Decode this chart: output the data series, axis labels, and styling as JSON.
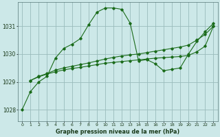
{
  "title": "Graphe pression niveau de la mer (hPa)",
  "bg_color": "#cce8e8",
  "grid_color": "#99bbbb",
  "line_color": "#1a6b1a",
  "xlim": [
    -0.5,
    23.5
  ],
  "ylim": [
    1027.6,
    1031.85
  ],
  "yticks": [
    1028,
    1029,
    1030,
    1031
  ],
  "xticks": [
    0,
    1,
    2,
    3,
    4,
    5,
    6,
    7,
    8,
    9,
    10,
    11,
    12,
    13,
    14,
    15,
    16,
    17,
    18,
    19,
    20,
    21,
    22,
    23
  ],
  "series1_x": [
    0,
    1,
    2,
    3,
    4,
    5,
    6,
    7,
    8,
    9,
    10,
    11,
    12,
    13,
    14,
    15,
    16,
    17,
    18,
    19,
    20,
    21,
    22,
    23
  ],
  "series1_y": [
    1028.0,
    1028.65,
    1029.0,
    1029.2,
    1029.85,
    1030.2,
    1030.35,
    1030.55,
    1031.05,
    1031.5,
    1031.65,
    1031.65,
    1031.6,
    1031.1,
    1029.75,
    1029.8,
    1029.65,
    1029.4,
    1029.45,
    1029.5,
    1030.0,
    1030.45,
    1030.8,
    1031.1
  ],
  "series2_x": [
    1,
    2,
    3,
    4,
    5,
    6,
    7,
    8,
    9,
    10,
    11,
    12,
    13,
    14,
    15,
    16,
    17,
    18,
    19,
    20,
    21,
    22,
    23
  ],
  "series2_y": [
    1029.05,
    1029.2,
    1029.3,
    1029.42,
    1029.5,
    1029.56,
    1029.62,
    1029.68,
    1029.75,
    1029.82,
    1029.88,
    1029.93,
    1029.97,
    1030.0,
    1030.05,
    1030.1,
    1030.15,
    1030.2,
    1030.25,
    1030.32,
    1030.5,
    1030.7,
    1031.0
  ],
  "series3_x": [
    1,
    2,
    3,
    4,
    5,
    6,
    7,
    8,
    9,
    10,
    11,
    12,
    13,
    14,
    15,
    16,
    17,
    18,
    19,
    20,
    21,
    22,
    23
  ],
  "series3_y": [
    1029.05,
    1029.18,
    1029.28,
    1029.36,
    1029.43,
    1029.48,
    1029.52,
    1029.57,
    1029.62,
    1029.67,
    1029.7,
    1029.73,
    1029.76,
    1029.79,
    1029.82,
    1029.85,
    1029.87,
    1029.89,
    1029.91,
    1029.95,
    1030.08,
    1030.28,
    1031.0
  ]
}
